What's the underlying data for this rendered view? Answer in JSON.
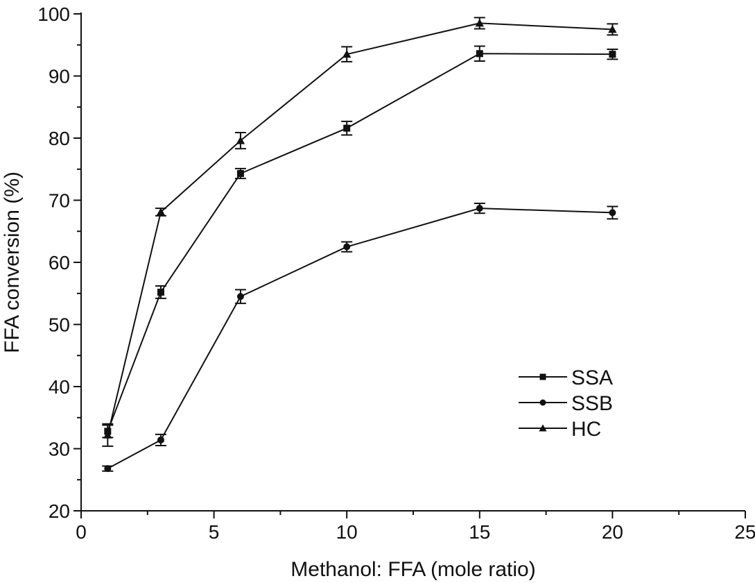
{
  "chart_data": {
    "type": "line",
    "title": "",
    "xlabel": "Methanol: FFA (mole ratio)",
    "ylabel": "FFA conversion (%)",
    "xlim": [
      0,
      25
    ],
    "ylim": [
      20,
      100
    ],
    "xticks": [
      0,
      5,
      10,
      15,
      20,
      25
    ],
    "yticks": [
      20,
      30,
      40,
      50,
      60,
      70,
      80,
      90,
      100
    ],
    "grid": false,
    "legend_position": "center-right",
    "x": [
      1,
      3,
      6,
      10,
      15,
      20
    ],
    "series": [
      {
        "name": "SSA",
        "marker": "square",
        "values": [
          32.8,
          55.2,
          74.3,
          81.6,
          93.6,
          93.5
        ],
        "errors": [
          1.0,
          1.0,
          0.8,
          1.1,
          1.2,
          0.8
        ]
      },
      {
        "name": "SSB",
        "marker": "circle",
        "values": [
          26.8,
          31.4,
          54.5,
          62.5,
          68.7,
          68.0
        ],
        "errors": [
          0.4,
          0.9,
          1.1,
          0.8,
          0.8,
          1.0
        ]
      },
      {
        "name": "HC",
        "marker": "triangle",
        "values": [
          32.2,
          68.1,
          79.6,
          93.5,
          98.5,
          97.5
        ],
        "errors": [
          1.8,
          0.6,
          1.3,
          1.2,
          0.9,
          0.9
        ]
      }
    ]
  }
}
